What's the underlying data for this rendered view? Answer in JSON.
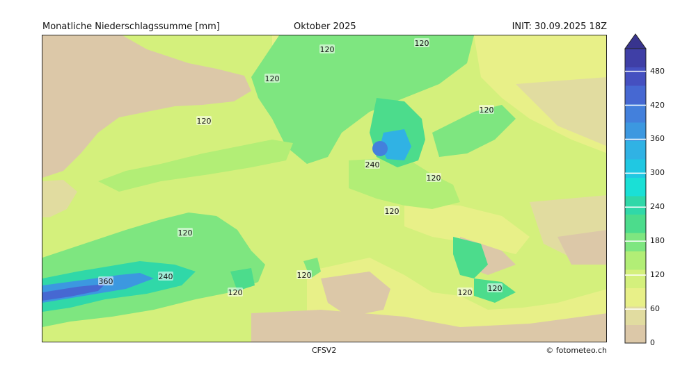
{
  "header": {
    "title": "Monatliche Niederschlagssumme [mm]",
    "period": "Oktober 2025",
    "init": "INIT: 30.09.2025 18Z"
  },
  "footer": {
    "model": "CFSV2",
    "credit": "© fotometeo.ch"
  },
  "colorbar": {
    "unit": "mm",
    "min": 0,
    "max": 520,
    "tick_values": [
      0,
      60,
      120,
      180,
      240,
      300,
      360,
      420,
      480
    ],
    "tick_labels": [
      "0",
      "60",
      "120",
      "180",
      "240",
      "300",
      "360",
      "420",
      "480"
    ],
    "colors": [
      "#dcc8a8",
      "#e1dca0",
      "#e8f088",
      "#d4f07c",
      "#b2ee76",
      "#7ee680",
      "#4cdc8c",
      "#30d8a8",
      "#1ae0d6",
      "#20c8e2",
      "#30b2e4",
      "#3c98e0",
      "#4380dc",
      "#4668d2",
      "#4550c0",
      "#3f3fa6",
      "#38348e"
    ]
  },
  "map": {
    "contour_labels": [
      {
        "text": "120",
        "region": "north-atlantic-top"
      },
      {
        "text": "120",
        "region": "norwegian-sea"
      },
      {
        "text": "120",
        "region": "iceland-area"
      },
      {
        "text": "120",
        "region": "greenland-east"
      },
      {
        "text": "120",
        "region": "finland"
      },
      {
        "text": "240",
        "region": "southern-norway"
      },
      {
        "text": "120",
        "region": "baltic-sea"
      },
      {
        "text": "120",
        "region": "germany"
      },
      {
        "text": "120",
        "region": "mid-atlantic"
      },
      {
        "text": "360",
        "region": "subtropical-atlantic"
      },
      {
        "text": "240",
        "region": "subtropical-atlantic"
      },
      {
        "text": "120",
        "region": "azores"
      },
      {
        "text": "120",
        "region": "iberia-west"
      },
      {
        "text": "120",
        "region": "ionian-sea"
      },
      {
        "text": "120",
        "region": "aegean-sea"
      }
    ]
  }
}
